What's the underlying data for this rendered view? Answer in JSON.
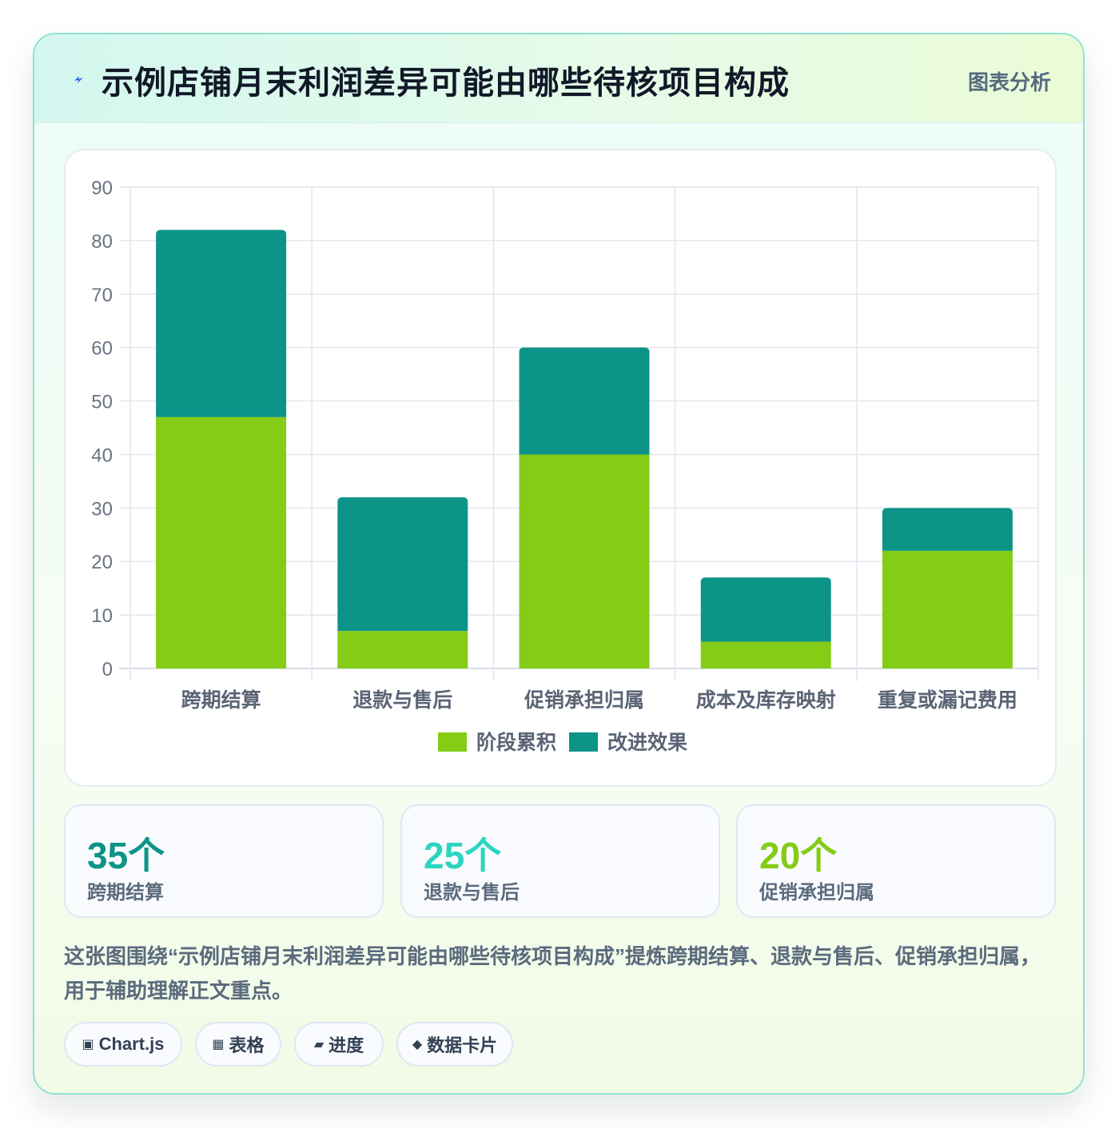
{
  "header": {
    "title": "示例店铺月末利润差异可能由哪些待核项目构成",
    "tag": "图表分析",
    "icon": "lightning-icon"
  },
  "chart_data": {
    "type": "bar",
    "stacked": true,
    "categories": [
      "跨期结算",
      "退款与售后",
      "促销承担归属",
      "成本及库存映射",
      "重复或漏记费用"
    ],
    "series": [
      {
        "name": "阶段累积",
        "color": "#84cc16",
        "values": [
          47,
          7,
          40,
          5,
          22
        ]
      },
      {
        "name": "改进效果",
        "color": "#0d9488",
        "values": [
          35,
          25,
          20,
          12,
          8
        ]
      }
    ],
    "ylim": [
      0,
      90
    ],
    "yticks": [
      0,
      10,
      20,
      30,
      40,
      50,
      60,
      70,
      80,
      90
    ],
    "grid": true,
    "legend": "bottom"
  },
  "stats": [
    {
      "value": "35个",
      "label": "跨期结算",
      "color": "#0d9488"
    },
    {
      "value": "25个",
      "label": "退款与售后",
      "color": "#2dd4bf"
    },
    {
      "value": "20个",
      "label": "促销承担归属",
      "color": "#84cc16"
    }
  ],
  "summary": "这张图围绕“示例店铺月末利润差异可能由哪些待核项目构成”提炼跨期结算、退款与售后、促销承担归属，用于辅助理解正文重点。",
  "tags": [
    {
      "icon": "▣",
      "label": "Chart.js"
    },
    {
      "icon": "▦",
      "label": "表格"
    },
    {
      "icon": "▰",
      "label": "进度"
    },
    {
      "icon": "◆",
      "label": "数据卡片"
    }
  ]
}
